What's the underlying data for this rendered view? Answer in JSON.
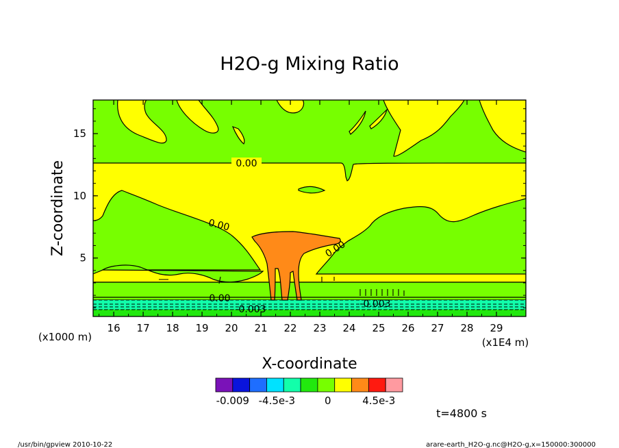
{
  "chart_data": {
    "type": "heatmap",
    "title": "H2O-g Mixing Ratio",
    "xlabel": "X-coordinate",
    "ylabel": "Z-coordinate",
    "x_unit": "(x1E4 m)",
    "y_unit": "(x1000 m)",
    "x_ticks": [
      "16",
      "17",
      "18",
      "19",
      "20",
      "21",
      "22",
      "23",
      "24",
      "25",
      "26",
      "27",
      "28",
      "29"
    ],
    "y_ticks": [
      "5",
      "10",
      "15"
    ],
    "xlim": [
      15.3,
      30.0
    ],
    "ylim": [
      0.3,
      17.7
    ],
    "contour_labels": [
      "0.00",
      "0.00",
      "0.00",
      "0.00",
      "-0.003",
      "-0.003"
    ],
    "colorbar": {
      "colors": [
        "#7a12b8",
        "#0a14dc",
        "#1e6eff",
        "#00e2ff",
        "#12ffaa",
        "#22e80e",
        "#77ff00",
        "#ffff00",
        "#ff8a18",
        "#ff1a10",
        "#ff9aa0"
      ],
      "tick_labels": [
        "-0.009",
        "-4.5e-3",
        "0",
        "4.5e-3"
      ]
    },
    "time_label": "t=4800 s"
  },
  "footer": {
    "left": "/usr/bin/gpview   2010-10-22",
    "right": "arare-earth_H2O-g.nc@H2O-g,x=150000:300000"
  }
}
